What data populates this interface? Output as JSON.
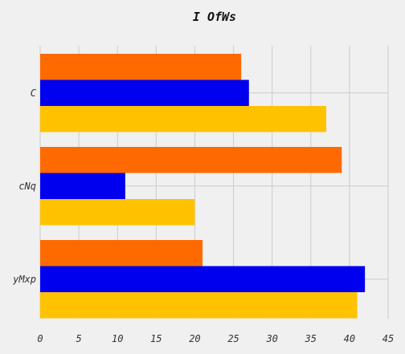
{
  "chart_data": {
    "type": "bar",
    "orientation": "horizontal",
    "title": "I OfWs",
    "xlabel": "",
    "ylabel": "",
    "categories": [
      "C",
      "cNq",
      "yMxp"
    ],
    "series": [
      {
        "color": "#ff6a00",
        "values": [
          26,
          39,
          21
        ]
      },
      {
        "color": "#0000ee",
        "values": [
          27,
          11,
          42
        ]
      },
      {
        "color": "#ffc200",
        "values": [
          37,
          20,
          41
        ]
      }
    ],
    "xlim": [
      0,
      45
    ],
    "xticks": [
      0,
      5,
      10,
      15,
      20,
      25,
      30,
      35,
      40,
      45
    ],
    "grid": true,
    "legend": "none"
  }
}
